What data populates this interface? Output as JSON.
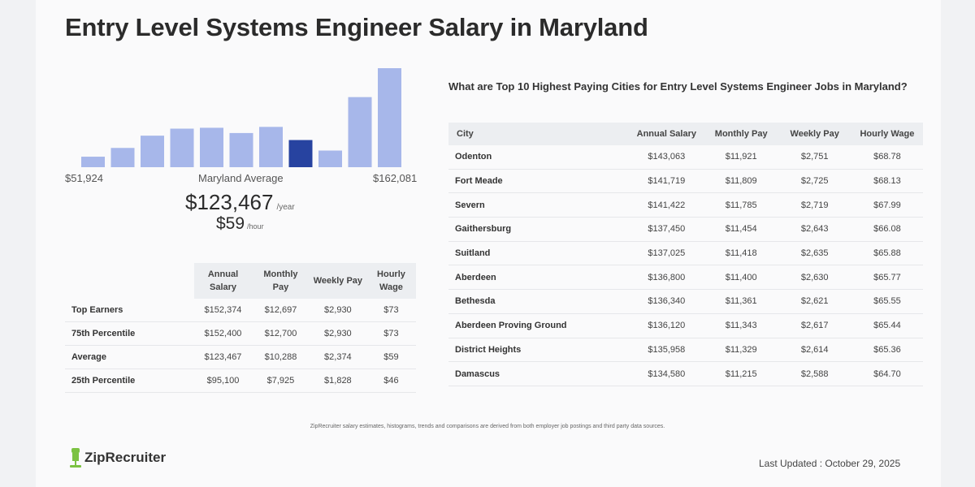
{
  "page": {
    "title": "Entry Level Systems Engineer Salary in Maryland"
  },
  "chart_data": {
    "type": "bar",
    "categories": [
      "1",
      "2",
      "3",
      "4",
      "5",
      "6",
      "7",
      "8",
      "9",
      "10",
      "11"
    ],
    "values": [
      12,
      22,
      36,
      44,
      45,
      39,
      46,
      31,
      19,
      80,
      113
    ],
    "highlight_index": 7,
    "colors": {
      "bar": "#a7b7ea",
      "highlight": "#2743a0"
    },
    "range_min_label": "$51,924",
    "range_max_label": "$162,081",
    "center_label": "Maryland Average"
  },
  "average": {
    "annual": "$123,467",
    "annual_unit": "/year",
    "hourly": "$59",
    "hourly_unit": "/hour"
  },
  "percentile_table": {
    "headers": [
      "Annual Salary",
      "Monthly Pay",
      "Weekly Pay",
      "Hourly Wage"
    ],
    "rows": [
      {
        "label": "Top Earners",
        "annual": "$152,374",
        "monthly": "$12,697",
        "weekly": "$2,930",
        "hourly": "$73"
      },
      {
        "label": "75th Percentile",
        "annual": "$152,400",
        "monthly": "$12,700",
        "weekly": "$2,930",
        "hourly": "$73"
      },
      {
        "label": "Average",
        "annual": "$123,467",
        "monthly": "$10,288",
        "weekly": "$2,374",
        "hourly": "$59"
      },
      {
        "label": "25th Percentile",
        "annual": "$95,100",
        "monthly": "$7,925",
        "weekly": "$1,828",
        "hourly": "$46"
      }
    ]
  },
  "cities": {
    "title": "What are Top 10 Highest Paying Cities for Entry Level Systems Engineer Jobs in Maryland?",
    "headers": [
      "City",
      "Annual Salary",
      "Monthly Pay",
      "Weekly Pay",
      "Hourly Wage"
    ],
    "rows": [
      {
        "city": "Odenton",
        "annual": "$143,063",
        "monthly": "$11,921",
        "weekly": "$2,751",
        "hourly": "$68.78"
      },
      {
        "city": "Fort Meade",
        "annual": "$141,719",
        "monthly": "$11,809",
        "weekly": "$2,725",
        "hourly": "$68.13"
      },
      {
        "city": "Severn",
        "annual": "$141,422",
        "monthly": "$11,785",
        "weekly": "$2,719",
        "hourly": "$67.99"
      },
      {
        "city": "Gaithersburg",
        "annual": "$137,450",
        "monthly": "$11,454",
        "weekly": "$2,643",
        "hourly": "$66.08"
      },
      {
        "city": "Suitland",
        "annual": "$137,025",
        "monthly": "$11,418",
        "weekly": "$2,635",
        "hourly": "$65.88"
      },
      {
        "city": "Aberdeen",
        "annual": "$136,800",
        "monthly": "$11,400",
        "weekly": "$2,630",
        "hourly": "$65.77"
      },
      {
        "city": "Bethesda",
        "annual": "$136,340",
        "monthly": "$11,361",
        "weekly": "$2,621",
        "hourly": "$65.55"
      },
      {
        "city": "Aberdeen Proving Ground",
        "annual": "$136,120",
        "monthly": "$11,343",
        "weekly": "$2,617",
        "hourly": "$65.44"
      },
      {
        "city": "District Heights",
        "annual": "$135,958",
        "monthly": "$11,329",
        "weekly": "$2,614",
        "hourly": "$65.36"
      },
      {
        "city": "Damascus",
        "annual": "$134,580",
        "monthly": "$11,215",
        "weekly": "$2,588",
        "hourly": "$64.70"
      }
    ]
  },
  "footer": {
    "footnote": "ZipRecruiter salary estimates, histograms, trends and comparisons are derived from both employer job postings and third party data sources.",
    "logo_text": "ZipRecruiter",
    "logo_icon": "ziprecruiter-logo-icon",
    "last_updated": "Last Updated : October 29, 2025"
  }
}
